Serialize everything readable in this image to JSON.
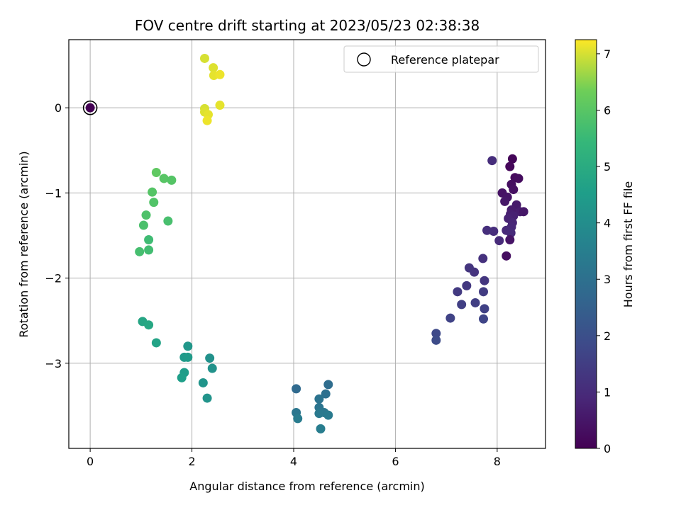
{
  "chart_data": {
    "type": "scatter",
    "title": "FOV centre drift starting at 2023/05/23 02:38:38",
    "xlabel": "Angular distance from reference (arcmin)",
    "ylabel": "Rotation from reference (arcmin)",
    "xlim": [
      -0.42,
      8.95
    ],
    "ylim": [
      -4.0,
      0.8
    ],
    "x_ticks": [
      0,
      2,
      4,
      6,
      8
    ],
    "y_ticks": [
      0,
      -1,
      -2,
      -3
    ],
    "grid": true,
    "legend": {
      "placement": "top-right",
      "entries": [
        "Reference platepar"
      ]
    },
    "colorbar": {
      "label": "Hours from first FF file",
      "min": 0,
      "max": 7.25,
      "ticks": [
        0,
        1,
        2,
        3,
        4,
        5,
        6,
        7
      ],
      "colormap": "viridis"
    },
    "reference_point": {
      "x": 0,
      "y": 0,
      "hours": 0
    },
    "points": [
      {
        "x": 0.0,
        "y": 0.0,
        "h": 0.0
      },
      {
        "x": 8.3,
        "y": -0.6,
        "h": 0.1
      },
      {
        "x": 8.25,
        "y": -0.69,
        "h": 0.15
      },
      {
        "x": 8.35,
        "y": -0.82,
        "h": 0.2
      },
      {
        "x": 8.42,
        "y": -0.83,
        "h": 0.25
      },
      {
        "x": 8.28,
        "y": -0.9,
        "h": 0.3
      },
      {
        "x": 8.32,
        "y": -0.96,
        "h": 0.35
      },
      {
        "x": 8.1,
        "y": -1.0,
        "h": 0.4
      },
      {
        "x": 8.2,
        "y": -1.05,
        "h": 0.45
      },
      {
        "x": 8.15,
        "y": -1.1,
        "h": 0.5
      },
      {
        "x": 8.38,
        "y": -1.14,
        "h": 0.55
      },
      {
        "x": 8.28,
        "y": -1.2,
        "h": 0.6
      },
      {
        "x": 8.45,
        "y": -1.22,
        "h": 0.65
      },
      {
        "x": 8.52,
        "y": -1.22,
        "h": 0.5
      },
      {
        "x": 8.26,
        "y": -1.25,
        "h": 0.7
      },
      {
        "x": 8.32,
        "y": -1.27,
        "h": 0.75
      },
      {
        "x": 8.22,
        "y": -1.3,
        "h": 0.8
      },
      {
        "x": 8.3,
        "y": -1.35,
        "h": 0.85
      },
      {
        "x": 8.28,
        "y": -1.4,
        "h": 0.9
      },
      {
        "x": 8.18,
        "y": -1.44,
        "h": 0.95
      },
      {
        "x": 8.27,
        "y": -1.47,
        "h": 1.0
      },
      {
        "x": 8.25,
        "y": -1.55,
        "h": 0.45
      },
      {
        "x": 8.04,
        "y": -1.56,
        "h": 1.0
      },
      {
        "x": 7.93,
        "y": -1.45,
        "h": 1.05
      },
      {
        "x": 7.8,
        "y": -1.44,
        "h": 1.1
      },
      {
        "x": 7.9,
        "y": -0.62,
        "h": 1.05
      },
      {
        "x": 8.18,
        "y": -1.74,
        "h": 0.3
      },
      {
        "x": 7.72,
        "y": -1.77,
        "h": 1.15
      },
      {
        "x": 7.55,
        "y": -1.93,
        "h": 1.2
      },
      {
        "x": 7.45,
        "y": -1.88,
        "h": 1.25
      },
      {
        "x": 7.75,
        "y": -2.03,
        "h": 1.3
      },
      {
        "x": 7.4,
        "y": -2.09,
        "h": 1.35
      },
      {
        "x": 7.22,
        "y": -2.16,
        "h": 1.4
      },
      {
        "x": 7.73,
        "y": -2.16,
        "h": 1.45
      },
      {
        "x": 7.57,
        "y": -2.29,
        "h": 1.5
      },
      {
        "x": 7.3,
        "y": -2.31,
        "h": 1.55
      },
      {
        "x": 7.75,
        "y": -2.36,
        "h": 1.6
      },
      {
        "x": 7.08,
        "y": -2.47,
        "h": 1.65
      },
      {
        "x": 7.73,
        "y": -2.48,
        "h": 1.7
      },
      {
        "x": 6.8,
        "y": -2.65,
        "h": 1.8
      },
      {
        "x": 6.8,
        "y": -2.73,
        "h": 1.9
      },
      {
        "x": 4.05,
        "y": -3.3,
        "h": 2.8
      },
      {
        "x": 4.68,
        "y": -3.25,
        "h": 2.9
      },
      {
        "x": 4.63,
        "y": -3.36,
        "h": 3.0
      },
      {
        "x": 4.5,
        "y": -3.42,
        "h": 3.1
      },
      {
        "x": 4.5,
        "y": -3.52,
        "h": 3.15
      },
      {
        "x": 4.05,
        "y": -3.58,
        "h": 3.2
      },
      {
        "x": 4.6,
        "y": -3.58,
        "h": 3.25
      },
      {
        "x": 4.5,
        "y": -3.59,
        "h": 3.3
      },
      {
        "x": 4.68,
        "y": -3.61,
        "h": 3.35
      },
      {
        "x": 4.08,
        "y": -3.65,
        "h": 3.4
      },
      {
        "x": 4.53,
        "y": -3.77,
        "h": 3.45
      },
      {
        "x": 2.35,
        "y": -2.94,
        "h": 4.1
      },
      {
        "x": 2.4,
        "y": -3.06,
        "h": 4.15
      },
      {
        "x": 2.3,
        "y": -3.41,
        "h": 4.2
      },
      {
        "x": 2.22,
        "y": -3.23,
        "h": 4.25
      },
      {
        "x": 1.92,
        "y": -2.8,
        "h": 4.3
      },
      {
        "x": 1.85,
        "y": -2.93,
        "h": 4.4
      },
      {
        "x": 1.92,
        "y": -2.93,
        "h": 4.45
      },
      {
        "x": 1.85,
        "y": -3.11,
        "h": 4.5
      },
      {
        "x": 1.8,
        "y": -3.17,
        "h": 4.55
      },
      {
        "x": 1.3,
        "y": -2.76,
        "h": 4.7
      },
      {
        "x": 1.03,
        "y": -2.51,
        "h": 4.8
      },
      {
        "x": 1.15,
        "y": -2.55,
        "h": 4.85
      },
      {
        "x": 1.15,
        "y": -1.55,
        "h": 5.6
      },
      {
        "x": 1.15,
        "y": -1.67,
        "h": 5.65
      },
      {
        "x": 0.97,
        "y": -1.69,
        "h": 5.7
      },
      {
        "x": 1.05,
        "y": -1.38,
        "h": 5.8
      },
      {
        "x": 1.1,
        "y": -1.26,
        "h": 5.85
      },
      {
        "x": 1.53,
        "y": -1.33,
        "h": 5.75
      },
      {
        "x": 1.25,
        "y": -1.11,
        "h": 5.9
      },
      {
        "x": 1.22,
        "y": -0.99,
        "h": 5.95
      },
      {
        "x": 1.3,
        "y": -0.76,
        "h": 6.1
      },
      {
        "x": 1.45,
        "y": -0.83,
        "h": 6.0
      },
      {
        "x": 1.6,
        "y": -0.85,
        "h": 5.95
      },
      {
        "x": 2.25,
        "y": 0.58,
        "h": 7.0
      },
      {
        "x": 2.42,
        "y": 0.47,
        "h": 7.05
      },
      {
        "x": 2.43,
        "y": 0.38,
        "h": 7.1
      },
      {
        "x": 2.55,
        "y": 0.39,
        "h": 7.15
      },
      {
        "x": 2.55,
        "y": 0.03,
        "h": 7.1
      },
      {
        "x": 2.25,
        "y": -0.01,
        "h": 7.0
      },
      {
        "x": 2.25,
        "y": -0.05,
        "h": 7.05
      },
      {
        "x": 2.32,
        "y": -0.08,
        "h": 7.1
      },
      {
        "x": 2.3,
        "y": -0.15,
        "h": 7.15
      }
    ]
  }
}
